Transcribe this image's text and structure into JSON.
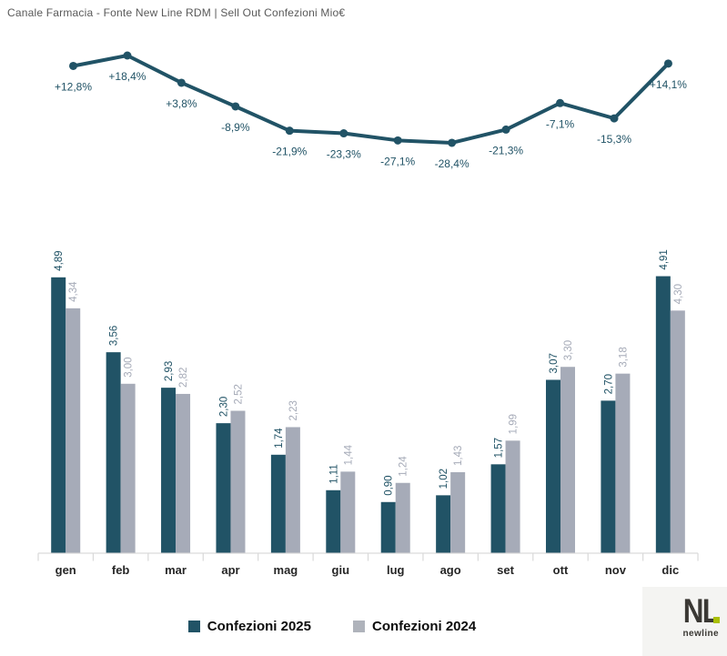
{
  "title": "Canale Farmacia - Fonte New Line RDM | Sell Out Confezioni Mio€",
  "colors": {
    "teal": "#215366",
    "gray": "#a6abb8",
    "legend_gray": "#afb3bb",
    "axis": "#d9d9d9",
    "month_label": "#262626"
  },
  "chart_data": [
    {
      "type": "line",
      "title": "YoY % variation",
      "x": [
        "gen",
        "feb",
        "mar",
        "apr",
        "mag",
        "giu",
        "lug",
        "ago",
        "set",
        "ott",
        "nov",
        "dic"
      ],
      "values": [
        12.8,
        18.4,
        3.8,
        -8.9,
        -21.9,
        -23.3,
        -27.1,
        -28.4,
        -21.3,
        -7.1,
        -15.3,
        14.1
      ],
      "labels": [
        "+12,8%",
        "+18,4%",
        "+3,8%",
        "-8,9%",
        "-21,9%",
        "-23,3%",
        "-27,1%",
        "-28,4%",
        "-21,3%",
        "-7,1%",
        "-15,3%",
        "+14,1%"
      ],
      "legend_position": "none",
      "grid": false
    },
    {
      "type": "bar",
      "categories": [
        "gen",
        "feb",
        "mar",
        "apr",
        "mag",
        "giu",
        "lug",
        "ago",
        "set",
        "ott",
        "nov",
        "dic"
      ],
      "series": [
        {
          "name": "Confezioni 2025",
          "values": [
            4.89,
            3.56,
            2.93,
            2.3,
            1.74,
            1.11,
            0.9,
            1.02,
            1.57,
            3.07,
            2.7,
            4.91
          ],
          "labels": [
            "4,89",
            "3,56",
            "2,93",
            "2,30",
            "1,74",
            "1,11",
            "0,90",
            "1,02",
            "1,57",
            "3,07",
            "2,70",
            "4,91"
          ]
        },
        {
          "name": "Confezioni 2024",
          "values": [
            4.34,
            3.0,
            2.82,
            2.52,
            2.23,
            1.44,
            1.24,
            1.43,
            1.99,
            3.3,
            3.18,
            4.3
          ],
          "labels": [
            "4,34",
            "3,00",
            "2,82",
            "2,52",
            "2,23",
            "1,44",
            "1,24",
            "1,43",
            "1,99",
            "3,30",
            "3,18",
            "4,30"
          ]
        }
      ],
      "ylim": [
        0,
        5
      ],
      "grid": false,
      "legend_position": "bottom"
    }
  ],
  "legend": {
    "items": [
      {
        "label": "Confezioni 2025"
      },
      {
        "label": "Confezioni 2024"
      }
    ]
  },
  "logo": {
    "monogram": "NL",
    "wordmark": "newline"
  }
}
